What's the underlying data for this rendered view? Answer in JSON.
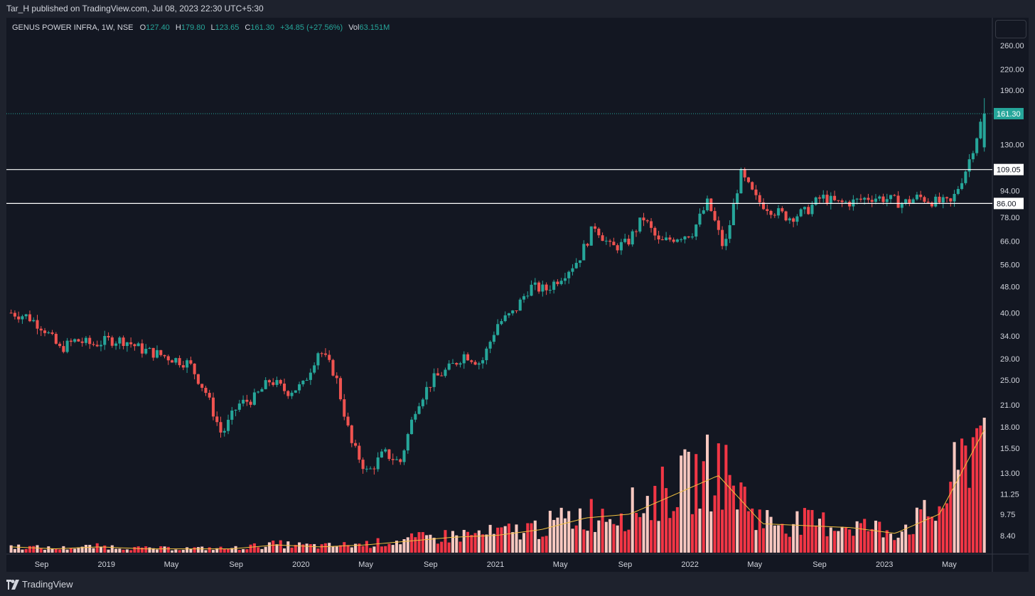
{
  "header": {
    "published_line": "Tar_H published on TradingView.com, Jul 08, 2023 22:30 UTC+5:30"
  },
  "legend": {
    "title": "GENUS POWER INFRA, 1W, NSE",
    "o_label": "O",
    "o_value": "127.40",
    "h_label": "H",
    "h_value": "179.80",
    "l_label": "L",
    "l_value": "123.65",
    "c_label": "C",
    "c_value": "161.30",
    "change": "+34.85 (+27.56%)",
    "vol_label": "Vol",
    "vol_value": "63.151M"
  },
  "footer": {
    "brand": "TradingView",
    "logo_icon": "tradingview-logo-icon"
  },
  "colors": {
    "up": "#26a69a",
    "down": "#ef5350",
    "background": "#131722",
    "grid_frame": "#363a45",
    "text": "#d1d4dc",
    "volume_ma": "#f0c040",
    "volume_up": "#f8c8c0",
    "volume_down": "#f23645"
  },
  "chart_data": {
    "type": "candlestick",
    "scale": "log",
    "y_ticks": [
      "260.00",
      "220.00",
      "190.00",
      "130.00",
      "94.00",
      "78.00",
      "66.00",
      "56.00",
      "48.00",
      "40.00",
      "34.00",
      "29.00",
      "25.00",
      "21.00",
      "18.00",
      "15.50",
      "13.00",
      "11.25",
      "9.75",
      "8.40"
    ],
    "x_ticks": [
      "Sep",
      "2019",
      "May",
      "Sep",
      "2020",
      "May",
      "Sep",
      "2021",
      "May",
      "Sep",
      "2022",
      "May",
      "Sep",
      "2023",
      "May"
    ],
    "last_price": {
      "value": 161.3,
      "label": "161.30"
    },
    "horizontal_lines": [
      {
        "value": 109.05,
        "label": "109.05"
      },
      {
        "value": 86.0,
        "label": "86.00"
      }
    ],
    "series": [
      {
        "name": "close",
        "x": [
          "2018-07",
          "2018-08",
          "2018-09",
          "2018-10",
          "2018-11",
          "2018-12",
          "2019-01",
          "2019-02",
          "2019-03",
          "2019-04",
          "2019-05",
          "2019-06",
          "2019-07",
          "2019-08",
          "2019-09",
          "2019-10",
          "2019-11",
          "2019-12",
          "2020-01",
          "2020-02",
          "2020-03",
          "2020-04",
          "2020-05",
          "2020-06",
          "2020-07",
          "2020-08",
          "2020-09",
          "2020-10",
          "2020-11",
          "2020-12",
          "2021-01",
          "2021-02",
          "2021-03",
          "2021-04",
          "2021-05",
          "2021-06",
          "2021-07",
          "2021-08",
          "2021-09",
          "2021-10",
          "2021-11",
          "2021-12",
          "2022-01",
          "2022-02",
          "2022-03",
          "2022-04",
          "2022-05",
          "2022-06",
          "2022-07",
          "2022-08",
          "2022-09",
          "2022-10",
          "2022-11",
          "2022-12",
          "2023-01",
          "2023-02",
          "2023-03",
          "2023-04",
          "2023-05",
          "2023-06",
          "2023-07"
        ],
        "values": [
          40,
          39,
          36,
          31,
          33,
          32,
          33,
          33,
          31,
          30,
          29,
          28,
          23,
          17,
          21,
          22,
          25,
          23,
          24,
          31,
          26,
          16,
          13,
          15,
          14,
          21,
          25,
          27,
          30,
          28,
          37,
          40,
          48,
          47,
          52,
          58,
          74,
          63,
          65,
          78,
          65,
          68,
          70,
          87,
          62,
          106,
          88,
          82,
          78,
          81,
          90,
          86,
          87,
          90,
          89,
          86,
          90,
          87,
          86,
          112,
          161
        ]
      }
    ],
    "volume": {
      "name": "Vol",
      "unit": "relative",
      "x": [
        "2018-07",
        "2018-10",
        "2019-01",
        "2019-04",
        "2019-07",
        "2019-10",
        "2020-01",
        "2020-04",
        "2020-07",
        "2020-10",
        "2021-01",
        "2021-04",
        "2021-07",
        "2021-09",
        "2021-12",
        "2022-03",
        "2022-04",
        "2022-07",
        "2022-10",
        "2023-01",
        "2023-04",
        "2023-06",
        "2023-07"
      ],
      "values": [
        3,
        2,
        3,
        2,
        2,
        2,
        4,
        3,
        4,
        6,
        8,
        9,
        12,
        18,
        20,
        30,
        40,
        15,
        14,
        13,
        10,
        20,
        63
      ]
    }
  }
}
